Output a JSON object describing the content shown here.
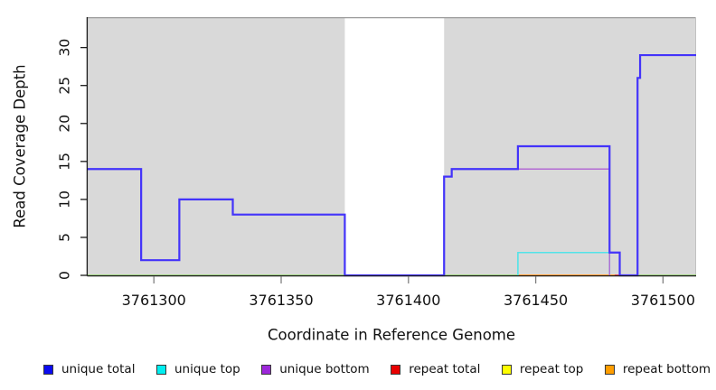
{
  "figure": {
    "background": "#ffffff",
    "panel_background": "#d9d9d9",
    "panel_top_border_color": "#9a9a9a",
    "axis_color": "#1a1a1a",
    "xtick_color": "#808080",
    "text_color": "#111111"
  },
  "chart_data": {
    "type": "line",
    "subtype": "step-coverage",
    "title": "",
    "xlabel": "Coordinate in Reference Genome",
    "ylabel": "Read Coverage Depth",
    "xlim": [
      3761274,
      3761513
    ],
    "ylim": [
      0,
      34
    ],
    "xticks": [
      3761300,
      3761350,
      3761400,
      3761450,
      3761500
    ],
    "yticks": [
      0,
      5,
      10,
      15,
      20,
      25,
      30
    ],
    "grid": "off",
    "legend_position": "bottom",
    "no_data_band": {
      "from": 3761375,
      "to": 3761414,
      "color": "#ffffff"
    },
    "series": [
      {
        "name": "repeat top",
        "color": "#fdfd00",
        "width": 1.5,
        "points": [
          [
            3761274,
            0
          ],
          [
            3761513,
            0
          ]
        ]
      },
      {
        "name": "baseline-green",
        "color": "#85cb85",
        "width": 1.6,
        "points": [
          [
            3761274,
            0
          ],
          [
            3761513,
            0
          ]
        ]
      },
      {
        "name": "repeat bottom",
        "color": "#ff9d2e",
        "width": 2,
        "points": [
          [
            3761443,
            0
          ],
          [
            3761481,
            0
          ]
        ]
      },
      {
        "name": "repeat total",
        "color": "#dd4455",
        "width": 2,
        "points": [
          [
            3761481,
            0
          ],
          [
            3761483,
            0
          ]
        ]
      },
      {
        "name": "unique top",
        "color": "#53e3e8",
        "width": 1.6,
        "points": [
          [
            3761443,
            0
          ],
          [
            3761443,
            3
          ],
          [
            3761479,
            3
          ],
          [
            3761479,
            0
          ]
        ]
      },
      {
        "name": "unique bottom",
        "color": "#b36bd4",
        "width": 1.4,
        "points": [
          [
            3761274,
            14
          ],
          [
            3761295,
            14
          ],
          [
            3761295,
            2
          ],
          [
            3761310,
            2
          ],
          [
            3761310,
            10
          ],
          [
            3761331,
            10
          ],
          [
            3761331,
            8
          ],
          [
            3761375,
            8
          ],
          [
            3761375,
            0
          ],
          [
            3761414,
            0
          ],
          [
            3761414,
            13
          ],
          [
            3761417,
            13
          ],
          [
            3761417,
            14
          ],
          [
            3761479,
            14
          ],
          [
            3761479,
            0
          ]
        ]
      },
      {
        "name": "unique total",
        "color": "#4333fa",
        "width": 2.2,
        "points": [
          [
            3761274,
            14
          ],
          [
            3761295,
            14
          ],
          [
            3761295,
            2
          ],
          [
            3761310,
            2
          ],
          [
            3761310,
            10
          ],
          [
            3761331,
            10
          ],
          [
            3761331,
            8
          ],
          [
            3761375,
            8
          ],
          [
            3761375,
            0
          ],
          [
            3761414,
            0
          ],
          [
            3761414,
            13
          ],
          [
            3761417,
            13
          ],
          [
            3761417,
            14
          ],
          [
            3761443,
            14
          ],
          [
            3761443,
            17
          ],
          [
            3761479,
            17
          ],
          [
            3761479,
            3
          ],
          [
            3761483,
            3
          ],
          [
            3761483,
            0
          ],
          [
            3761490,
            0
          ],
          [
            3761490,
            26
          ],
          [
            3761491,
            26
          ],
          [
            3761491,
            29
          ],
          [
            3761513,
            29
          ]
        ]
      }
    ],
    "legend": [
      {
        "label": "unique total",
        "color": "#0b0bf0"
      },
      {
        "label": "unique top",
        "color": "#00eef0"
      },
      {
        "label": "unique bottom",
        "color": "#9c27d9"
      },
      {
        "label": "repeat total",
        "color": "#e80000"
      },
      {
        "label": "repeat top",
        "color": "#fdfd00"
      },
      {
        "label": "repeat bottom",
        "color": "#ff9d00"
      }
    ]
  }
}
